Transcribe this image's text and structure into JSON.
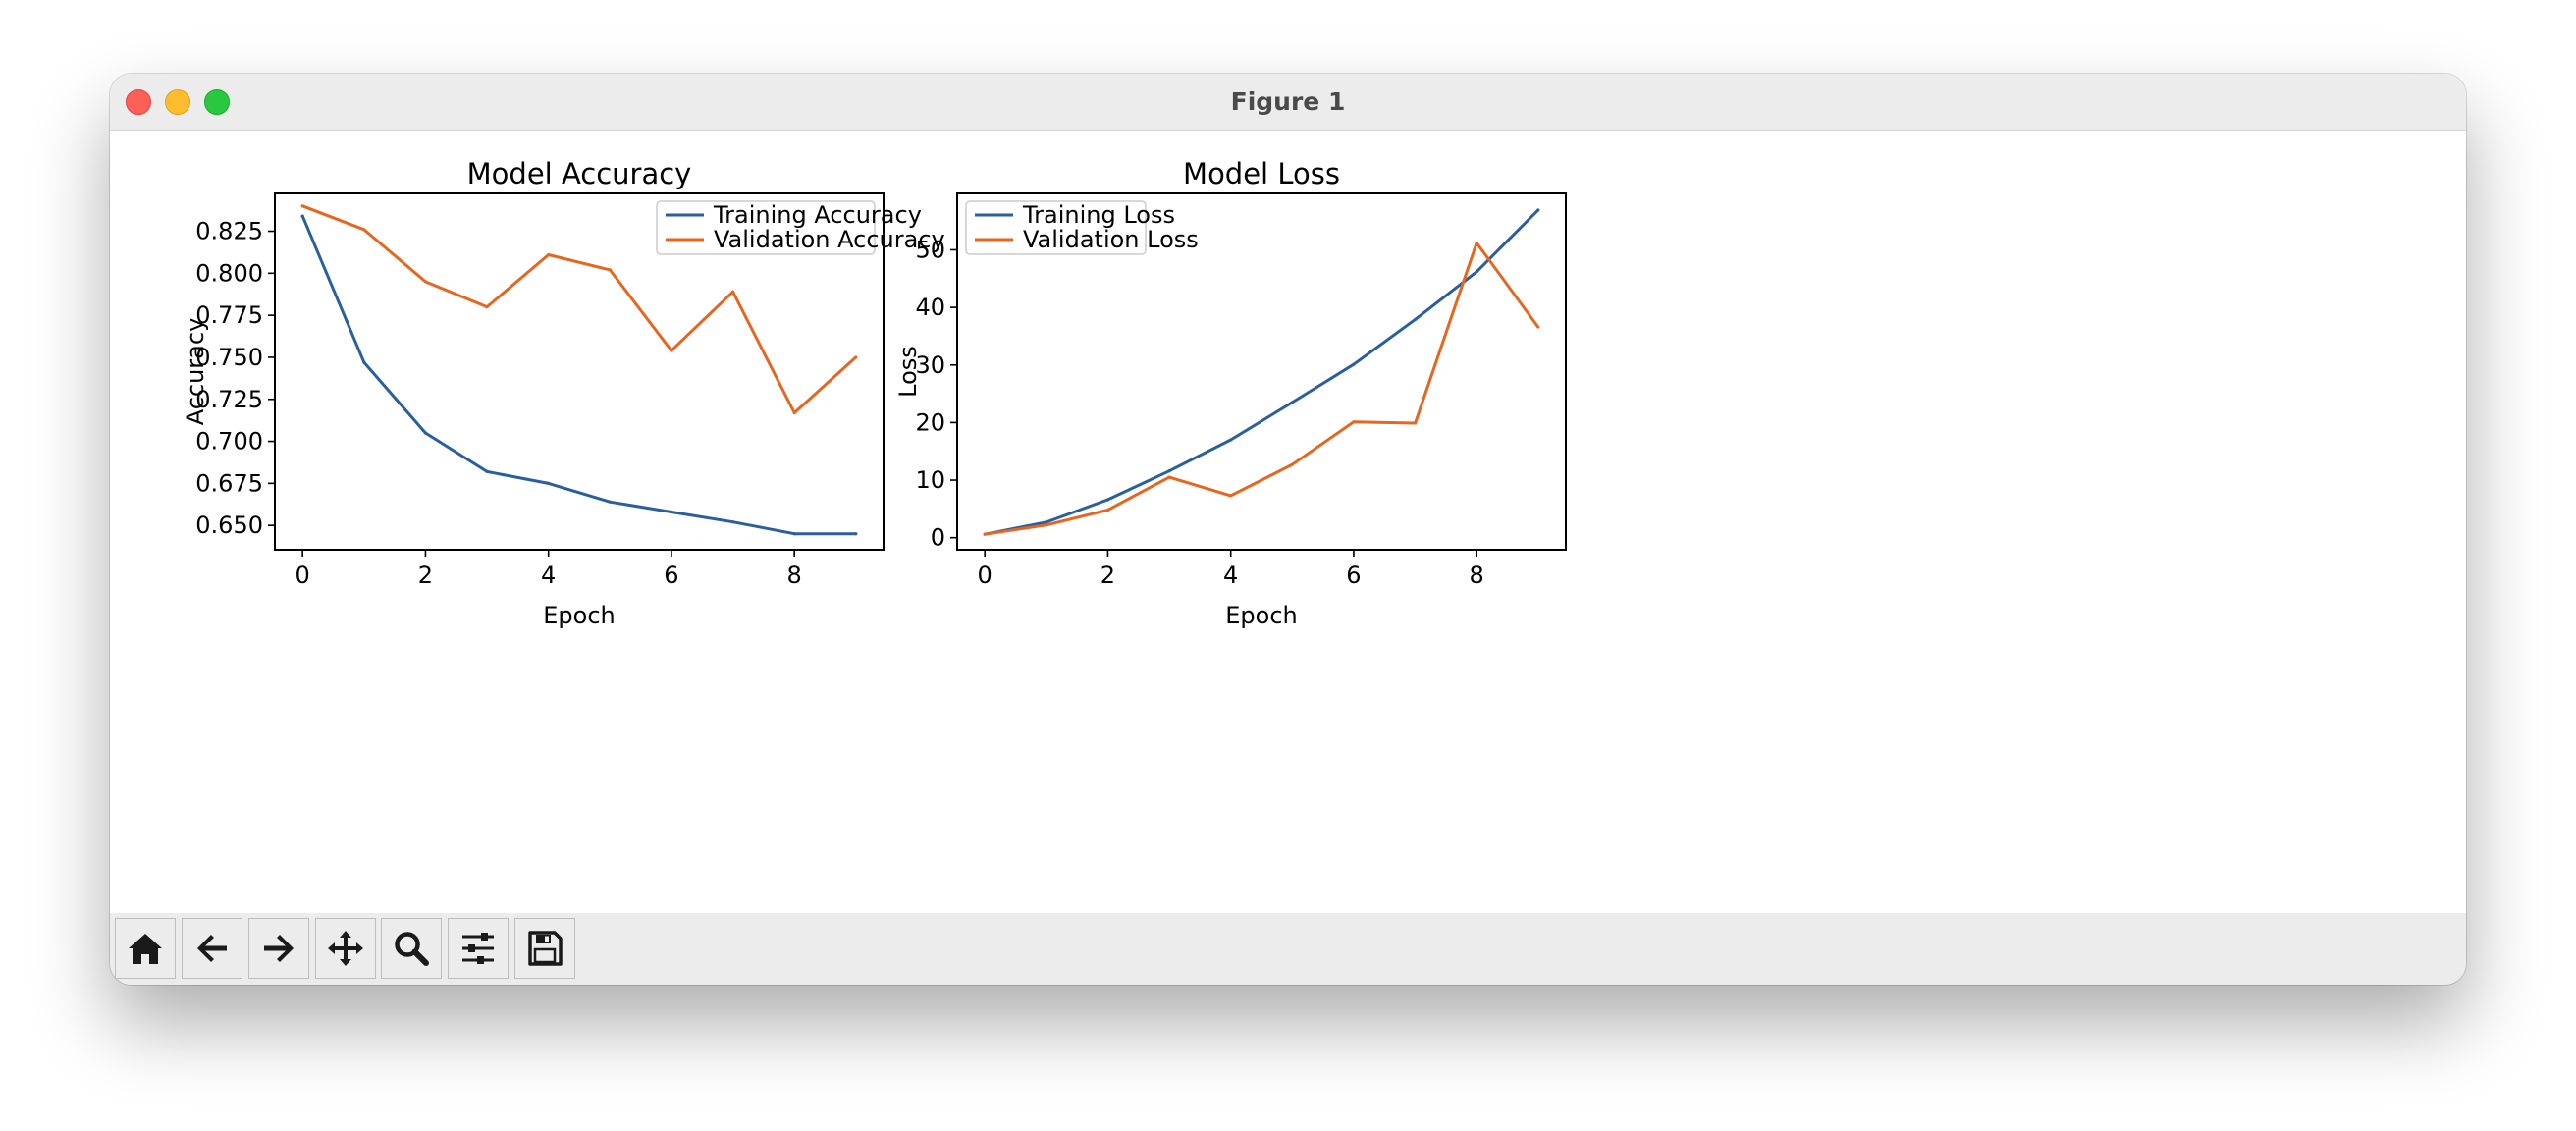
{
  "window": {
    "title": "Figure 1"
  },
  "toolbar": {
    "buttons": [
      {
        "name": "home-button",
        "icon": "home-icon"
      },
      {
        "name": "back-button",
        "icon": "arrow-left-icon"
      },
      {
        "name": "forward-button",
        "icon": "arrow-right-icon"
      },
      {
        "name": "pan-button",
        "icon": "move-icon"
      },
      {
        "name": "zoom-button",
        "icon": "magnifier-icon"
      },
      {
        "name": "configure-subplots-button",
        "icon": "sliders-icon"
      },
      {
        "name": "save-button",
        "icon": "floppy-disk-icon"
      }
    ]
  },
  "colors": {
    "series1": "#2a5f9e",
    "series2": "#e5661f"
  },
  "chart_data": [
    {
      "type": "line",
      "title": "Model Accuracy",
      "xlabel": "Epoch",
      "ylabel": "Accuracy",
      "xlim": [
        -0.45,
        9.45
      ],
      "ylim": [
        0.6355,
        0.8475
      ],
      "xticks": [
        0,
        2,
        4,
        6,
        8
      ],
      "xtick_labels": [
        "0",
        "2",
        "4",
        "6",
        "8"
      ],
      "yticks": [
        0.65,
        0.675,
        0.7,
        0.725,
        0.75,
        0.775,
        0.8,
        0.825
      ],
      "ytick_labels": [
        "0.650",
        "0.675",
        "0.700",
        "0.725",
        "0.750",
        "0.775",
        "0.800",
        "0.825"
      ],
      "legend": "upper right",
      "x": [
        0,
        1,
        2,
        3,
        4,
        5,
        6,
        7,
        8,
        9
      ],
      "series": [
        {
          "name": "Training Accuracy",
          "color": "#2a5f9e",
          "values": [
            0.834,
            0.747,
            0.705,
            0.682,
            0.675,
            0.664,
            0.658,
            0.652,
            0.645,
            0.645
          ]
        },
        {
          "name": "Validation Accuracy",
          "color": "#e5661f",
          "values": [
            0.84,
            0.826,
            0.795,
            0.78,
            0.811,
            0.802,
            0.754,
            0.789,
            0.717,
            0.75
          ]
        }
      ]
    },
    {
      "type": "line",
      "title": "Model Loss",
      "xlabel": "Epoch",
      "ylabel": "Loss",
      "xlim": [
        -0.45,
        9.45
      ],
      "ylim": [
        -2.1,
        59.8
      ],
      "xticks": [
        0,
        2,
        4,
        6,
        8
      ],
      "xtick_labels": [
        "0",
        "2",
        "4",
        "6",
        "8"
      ],
      "yticks": [
        0,
        10,
        20,
        30,
        40,
        50
      ],
      "ytick_labels": [
        "0",
        "10",
        "20",
        "30",
        "40",
        "50"
      ],
      "legend": "upper left",
      "x": [
        0,
        1,
        2,
        3,
        4,
        5,
        6,
        7,
        8,
        9
      ],
      "series": [
        {
          "name": "Training Loss",
          "color": "#2a5f9e",
          "values": [
            0.6,
            2.7,
            6.6,
            11.6,
            17.0,
            23.5,
            30.1,
            37.9,
            46.2,
            56.9
          ]
        },
        {
          "name": "Validation Loss",
          "color": "#e5661f",
          "values": [
            0.6,
            2.2,
            4.8,
            10.5,
            7.3,
            12.7,
            20.1,
            19.9,
            51.2,
            36.6
          ]
        }
      ]
    }
  ]
}
